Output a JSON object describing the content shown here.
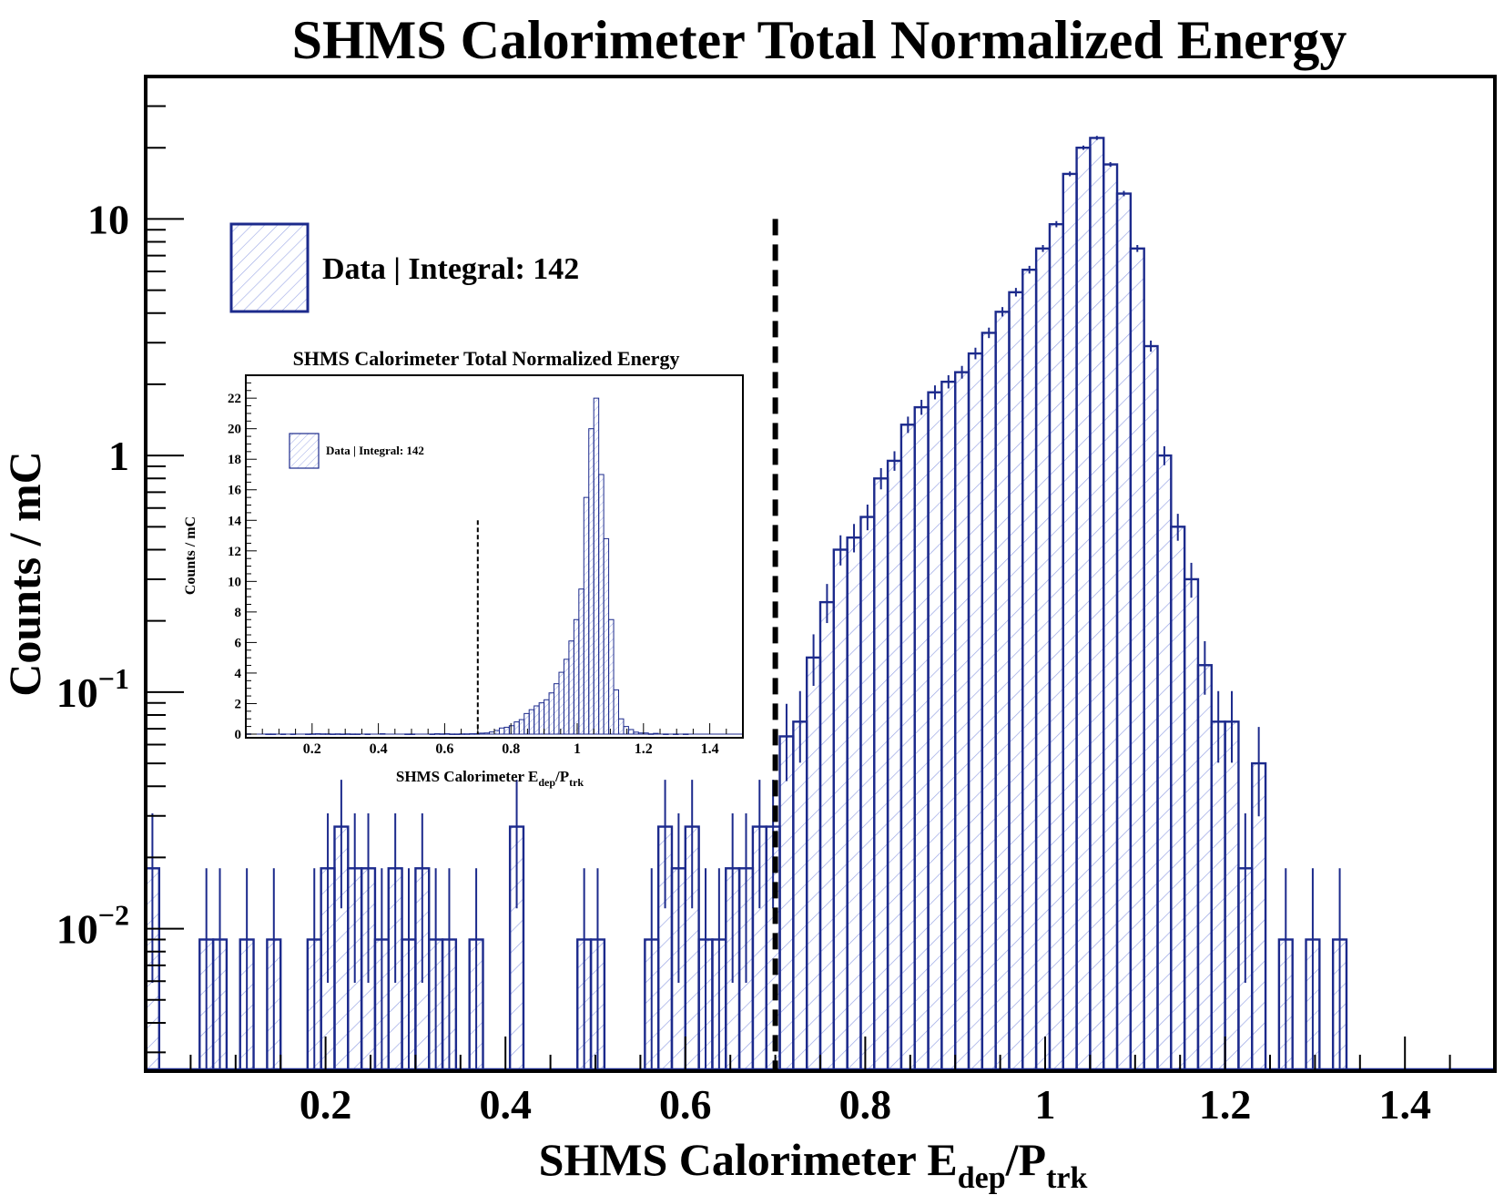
{
  "colors": {
    "hist_line": "#1c2a8c",
    "hist_fill": "#9aa6e6",
    "axis": "#000000",
    "cut_line": "#000000"
  },
  "chart_data": [
    {
      "id": "main",
      "type": "histogram",
      "yscale": "log",
      "title": "SHMS Calorimeter Total Normalized Energy",
      "xlabel": {
        "base": "SHMS Calorimeter E",
        "sub1": "dep",
        "mid": "/P",
        "sub2": "trk"
      },
      "ylabel": "Counts / mC",
      "xlim": [
        0.0,
        1.5
      ],
      "ylim": [
        0.0025,
        40
      ],
      "xticks": [
        0.2,
        0.4,
        0.6,
        0.8,
        1.0,
        1.2,
        1.4
      ],
      "xtick_labels": [
        "0.2",
        "0.4",
        "0.6",
        "0.8",
        "1",
        "1.2",
        "1.4"
      ],
      "yticks": [
        {
          "value": 10,
          "base": "10",
          "exp": ""
        },
        {
          "value": 1,
          "base": "1",
          "exp": ""
        },
        {
          "value": 0.1,
          "base": "10",
          "exp": "−1"
        },
        {
          "value": 0.01,
          "base": "10",
          "exp": "−2"
        }
      ],
      "cut_line_x": 0.7,
      "legend": {
        "label": "Data | Integral: 142",
        "position": "top-left"
      },
      "bin_width": 0.015,
      "bins": [
        [
          0.0,
          0.018
        ],
        [
          0.06,
          0.009
        ],
        [
          0.075,
          0.009
        ],
        [
          0.105,
          0.009
        ],
        [
          0.135,
          0.009
        ],
        [
          0.18,
          0.009
        ],
        [
          0.195,
          0.018
        ],
        [
          0.21,
          0.027
        ],
        [
          0.225,
          0.018
        ],
        [
          0.24,
          0.018
        ],
        [
          0.255,
          0.009
        ],
        [
          0.27,
          0.018
        ],
        [
          0.285,
          0.009
        ],
        [
          0.3,
          0.018
        ],
        [
          0.315,
          0.009
        ],
        [
          0.33,
          0.009
        ],
        [
          0.36,
          0.009
        ],
        [
          0.405,
          0.027
        ],
        [
          0.48,
          0.009
        ],
        [
          0.495,
          0.009
        ],
        [
          0.555,
          0.009
        ],
        [
          0.57,
          0.027
        ],
        [
          0.585,
          0.018
        ],
        [
          0.6,
          0.027
        ],
        [
          0.615,
          0.009
        ],
        [
          0.63,
          0.009
        ],
        [
          0.645,
          0.018
        ],
        [
          0.66,
          0.018
        ],
        [
          0.675,
          0.027
        ],
        [
          0.69,
          0.027
        ],
        [
          0.705,
          0.065
        ],
        [
          0.72,
          0.075
        ],
        [
          0.735,
          0.14
        ],
        [
          0.75,
          0.24
        ],
        [
          0.765,
          0.4
        ],
        [
          0.78,
          0.45
        ],
        [
          0.795,
          0.55
        ],
        [
          0.81,
          0.8
        ],
        [
          0.825,
          0.95
        ],
        [
          0.84,
          1.35
        ],
        [
          0.855,
          1.6
        ],
        [
          0.87,
          1.85
        ],
        [
          0.885,
          2.05
        ],
        [
          0.9,
          2.25
        ],
        [
          0.915,
          2.7
        ],
        [
          0.93,
          3.3
        ],
        [
          0.945,
          4.05
        ],
        [
          0.96,
          4.9
        ],
        [
          0.975,
          6.1
        ],
        [
          0.99,
          7.5
        ],
        [
          1.005,
          9.5
        ],
        [
          1.02,
          15.5
        ],
        [
          1.035,
          20.0
        ],
        [
          1.05,
          22.0
        ],
        [
          1.065,
          17.0
        ],
        [
          1.08,
          12.8
        ],
        [
          1.095,
          7.5
        ],
        [
          1.11,
          2.9
        ],
        [
          1.125,
          1.0
        ],
        [
          1.14,
          0.5
        ],
        [
          1.155,
          0.3
        ],
        [
          1.17,
          0.13
        ],
        [
          1.185,
          0.075
        ],
        [
          1.2,
          0.075
        ],
        [
          1.215,
          0.018
        ],
        [
          1.23,
          0.05
        ],
        [
          1.26,
          0.009
        ],
        [
          1.29,
          0.009
        ],
        [
          1.32,
          0.009
        ]
      ]
    },
    {
      "id": "inset",
      "type": "histogram",
      "yscale": "linear",
      "title": "SHMS Calorimeter Total Normalized Energy",
      "xlabel": {
        "base": "SHMS Calorimeter E",
        "sub1": "dep",
        "mid": "/P",
        "sub2": "trk"
      },
      "ylabel": "Counts / mC",
      "xlim": [
        0.0,
        1.5
      ],
      "ylim": [
        0,
        23.5
      ],
      "xticks": [
        0.2,
        0.4,
        0.6,
        0.8,
        1.0,
        1.2,
        1.4
      ],
      "xtick_labels": [
        "0.2",
        "0.4",
        "0.6",
        "0.8",
        "1",
        "1.2",
        "1.4"
      ],
      "yticks": [
        0,
        2,
        4,
        6,
        8,
        10,
        12,
        14,
        16,
        18,
        20,
        22
      ],
      "ytick_labels": [
        "0",
        "2",
        "4",
        "6",
        "8",
        "10",
        "12",
        "14",
        "16",
        "18",
        "20",
        "22"
      ],
      "cut_line_x": 0.7,
      "cut_line_top": 14.0,
      "legend": {
        "label": "Data | Integral: 142",
        "position": "top-left"
      },
      "same_bins_as": "main"
    }
  ]
}
